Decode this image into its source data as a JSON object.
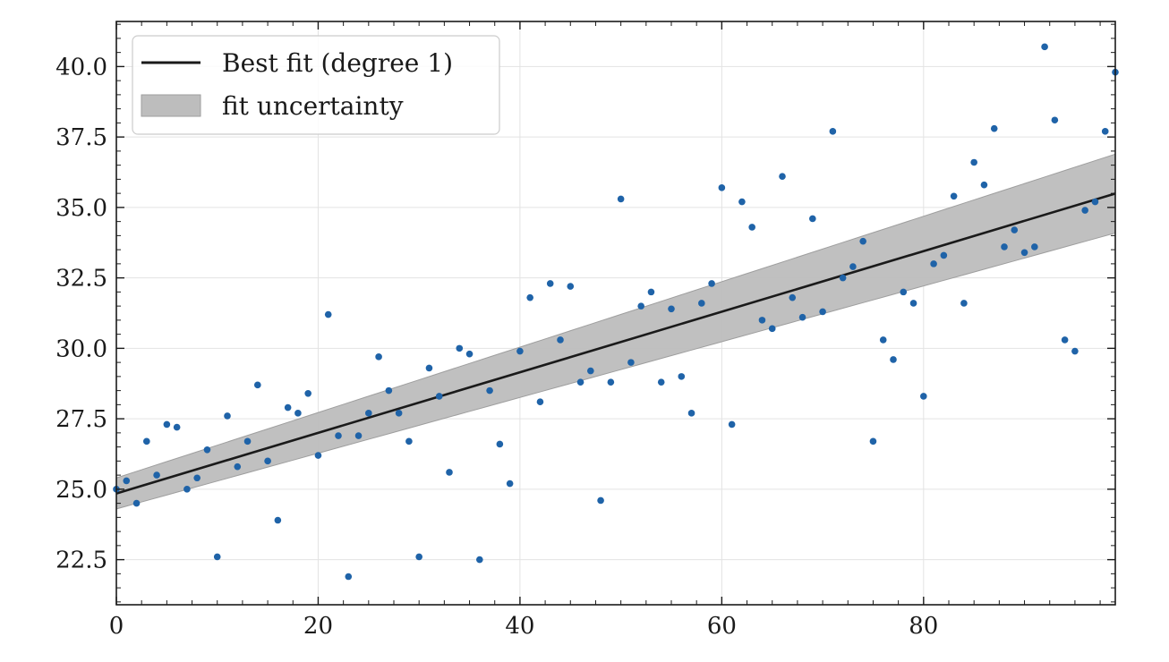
{
  "chart_data": {
    "type": "scatter",
    "title": "",
    "xlabel": "",
    "ylabel": "",
    "xlim": [
      0,
      99
    ],
    "ylim": [
      20.9,
      41.6
    ],
    "grid": true,
    "legend_position": "top-left",
    "x_ticks": [
      0,
      20,
      40,
      60,
      80
    ],
    "x_tick_labels": [
      "0",
      "20",
      "40",
      "60",
      "80"
    ],
    "y_ticks": [
      22.5,
      25.0,
      27.5,
      30.0,
      32.5,
      35.0,
      37.5,
      40.0
    ],
    "y_tick_labels": [
      "22.5",
      "25.0",
      "27.5",
      "30.0",
      "32.5",
      "35.0",
      "37.5",
      "40.0"
    ],
    "legend": [
      {
        "label": "Best fit (degree 1)",
        "kind": "line",
        "color": "#1a1a1a"
      },
      {
        "label": "fit uncertainty",
        "kind": "band",
        "color": "#bdbdbd"
      }
    ],
    "fit": {
      "slope": 0.1075,
      "intercept": 24.85,
      "band_halfwidth_start": 0.55,
      "band_halfwidth_end": 1.4
    },
    "points": {
      "color": "#1f63a8",
      "x": [
        0,
        1,
        2,
        3,
        4,
        5,
        6,
        7,
        8,
        9,
        10,
        11,
        12,
        13,
        14,
        15,
        16,
        17,
        18,
        19,
        20,
        21,
        22,
        23,
        24,
        25,
        26,
        27,
        28,
        29,
        30,
        31,
        32,
        33,
        34,
        35,
        36,
        37,
        38,
        39,
        40,
        41,
        42,
        43,
        44,
        45,
        46,
        47,
        48,
        49,
        50,
        51,
        52,
        53,
        54,
        55,
        56,
        57,
        58,
        59,
        60,
        61,
        62,
        63,
        64,
        65,
        66,
        67,
        68,
        69,
        70,
        71,
        72,
        73,
        74,
        75,
        76,
        77,
        78,
        79,
        80,
        81,
        82,
        83,
        84,
        85,
        86,
        87,
        88,
        89,
        90,
        91,
        92,
        93,
        94,
        95,
        96,
        97,
        98,
        99
      ],
      "y": [
        25.0,
        25.3,
        24.5,
        26.7,
        25.5,
        27.3,
        27.2,
        25.0,
        25.4,
        26.4,
        22.6,
        27.6,
        25.8,
        26.7,
        28.7,
        26.0,
        23.9,
        27.9,
        27.7,
        28.4,
        26.2,
        31.2,
        26.9,
        21.9,
        26.9,
        27.7,
        29.7,
        28.5,
        27.7,
        26.7,
        22.6,
        29.3,
        28.3,
        25.6,
        30.0,
        29.8,
        22.5,
        28.5,
        26.6,
        25.2,
        29.9,
        31.8,
        28.1,
        32.3,
        30.3,
        32.2,
        28.8,
        29.2,
        24.6,
        28.8,
        35.3,
        29.5,
        31.5,
        32.0,
        28.8,
        31.4,
        29.0,
        27.7,
        31.6,
        32.3,
        35.7,
        27.3,
        35.2,
        34.3,
        31.0,
        30.7,
        36.1,
        31.8,
        31.1,
        34.6,
        31.3,
        37.7,
        32.5,
        32.9,
        33.8,
        26.7,
        30.3,
        29.6,
        32.0,
        31.6,
        28.3,
        33.0,
        33.3,
        35.4,
        31.6,
        36.6,
        35.8,
        37.8,
        33.6,
        34.2,
        33.4,
        33.6,
        40.7,
        38.1,
        30.3,
        29.9,
        34.9,
        35.2,
        37.7,
        39.8
      ]
    }
  }
}
